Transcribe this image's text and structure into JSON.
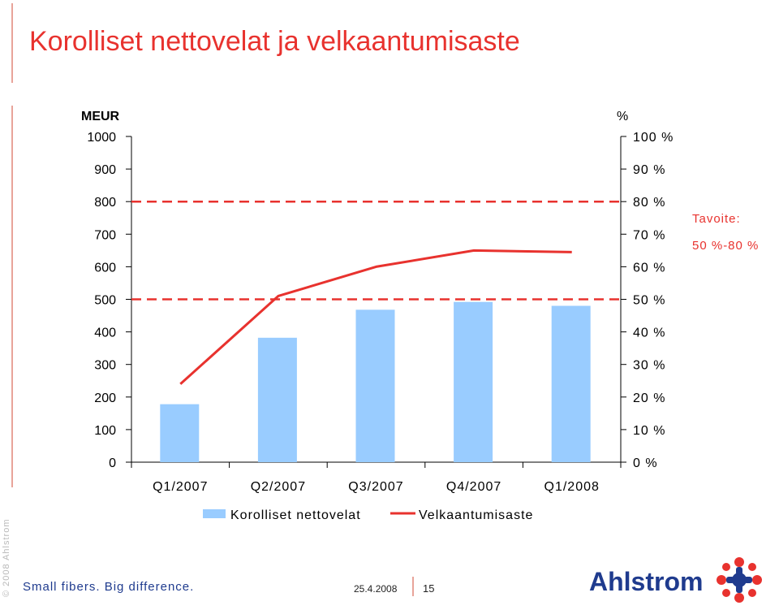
{
  "title": "Korolliset nettovelat ja velkaantumisaste",
  "chart_data": {
    "type": "bar",
    "categories": [
      "Q1/2007",
      "Q2/2007",
      "Q3/2007",
      "Q4/2007",
      "Q1/2008"
    ],
    "series": [
      {
        "name": "Korolliset nettovelat",
        "type": "bar",
        "axis": "left",
        "values": [
          178,
          382,
          468,
          492,
          480
        ],
        "color": "#99ccff"
      },
      {
        "name": "Velkaantumisaste",
        "type": "line",
        "axis": "right",
        "values": [
          24,
          51,
          60,
          65,
          64.5
        ],
        "color": "#e8322e"
      }
    ],
    "left_axis": {
      "label": "MEUR",
      "ylim": [
        0,
        1000
      ],
      "ticks": [
        "0",
        "100",
        "200",
        "300",
        "400",
        "500",
        "600",
        "700",
        "800",
        "900",
        "1000"
      ]
    },
    "right_axis": {
      "label": "%",
      "ylim": [
        0,
        100
      ],
      "ticks": [
        "0 %",
        "10 %",
        "20 %",
        "30 %",
        "40 %",
        "50 %",
        "60 %",
        "70 %",
        "80 %",
        "90 %",
        "100 %"
      ]
    },
    "target_band": {
      "values": [
        50,
        80
      ],
      "label_line1": "Tavoite:",
      "label_line2": "50 %-80 %",
      "color": "#e8322e"
    },
    "legend": {
      "placement": "bottom",
      "items": [
        "Korolliset nettovelat",
        "Velkaantumisaste"
      ]
    },
    "grid": false
  },
  "footer": {
    "copyright": "© 2008 Ahlstrom",
    "slogan": "Small fibers. Big difference.",
    "date": "25.4.2008",
    "page": "15",
    "logo_text": "Ahlstrom"
  },
  "colors": {
    "accent_red": "#e8322e",
    "bar_blue": "#99ccff",
    "brand_blue": "#1f3b8e",
    "accent_pink": "#e8a49a"
  }
}
